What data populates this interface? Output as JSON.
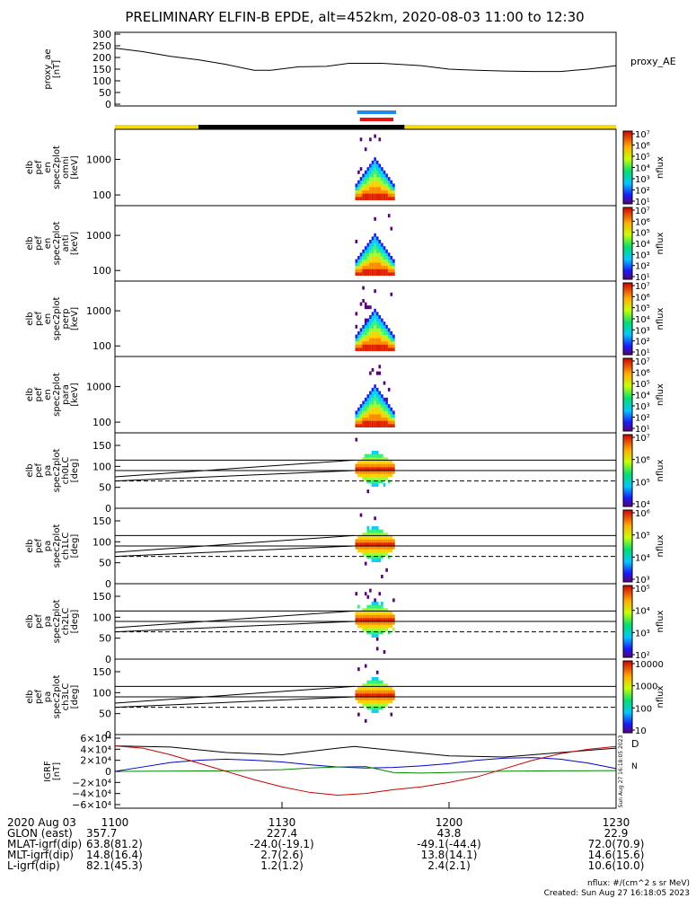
{
  "title": "PRELIMINARY ELFIN-B EPDE, alt=452km, 2020-08-03 11:00 to 12:30",
  "chart_data": [
    {
      "type": "line",
      "id": "proxy_ae",
      "ylabel_lines": [
        "proxy_ae",
        "[nT]"
      ],
      "right_label": "proxy_AE",
      "ylim": [
        0,
        300
      ],
      "yticks": [
        "300",
        "250",
        "200",
        "150",
        "100",
        "50",
        "0"
      ],
      "x": [
        0,
        5,
        10,
        15,
        20,
        25,
        28,
        33,
        38,
        42,
        48,
        55,
        60,
        65,
        70,
        75,
        80,
        85,
        90
      ],
      "y": [
        240,
        225,
        205,
        190,
        170,
        145,
        145,
        160,
        162,
        175,
        175,
        165,
        150,
        145,
        142,
        140,
        140,
        150,
        165
      ]
    },
    {
      "type": "heatmap",
      "id": "en_omni",
      "ylabel_lines": [
        "elb",
        "pef",
        "en",
        "spec2plot",
        "omni",
        "[keV]"
      ],
      "yscale": "log",
      "ylim": [
        50,
        7000
      ],
      "yticks": [
        "1000",
        "100"
      ],
      "colorbar_label": "nflux",
      "colorbar_ticks": [
        "10⁷",
        "10⁶",
        "10⁵",
        "10⁴",
        "10³",
        "10²",
        "10¹"
      ]
    },
    {
      "type": "heatmap",
      "id": "en_anti",
      "ylabel_lines": [
        "elb",
        "pef",
        "en",
        "spec2plot",
        "anti",
        "[keV]"
      ],
      "yscale": "log",
      "ylim": [
        50,
        7000
      ],
      "yticks": [
        "1000",
        "100"
      ],
      "colorbar_label": "nflux",
      "colorbar_ticks": [
        "10⁷",
        "10⁶",
        "10⁵",
        "10⁴",
        "10³",
        "10²",
        "10¹"
      ]
    },
    {
      "type": "heatmap",
      "id": "en_perp",
      "ylabel_lines": [
        "elb",
        "pef",
        "en",
        "spec2plot",
        "perp",
        "[keV]"
      ],
      "yscale": "log",
      "ylim": [
        50,
        7000
      ],
      "yticks": [
        "1000",
        "100"
      ],
      "colorbar_label": "nflux",
      "colorbar_ticks": [
        "10⁷",
        "10⁶",
        "10⁵",
        "10⁴",
        "10³",
        "10²",
        "10¹"
      ]
    },
    {
      "type": "heatmap",
      "id": "en_para",
      "ylabel_lines": [
        "elb",
        "pef",
        "en",
        "spec2plot",
        "para",
        "[keV]"
      ],
      "yscale": "log",
      "ylim": [
        50,
        7000
      ],
      "yticks": [
        "1000",
        "100"
      ],
      "colorbar_label": "nflux",
      "colorbar_ticks": [
        "10⁷",
        "10⁶",
        "10⁵",
        "10⁴",
        "10³",
        "10²",
        "10¹"
      ]
    },
    {
      "type": "heatmap",
      "id": "pa_ch0",
      "ylabel_lines": [
        "elb",
        "pef",
        "pa",
        "spec2plot",
        "ch0LC",
        "[deg]"
      ],
      "ylim": [
        0,
        180
      ],
      "yticks": [
        "150",
        "100",
        "50",
        "0"
      ],
      "colorbar_label": "nflux",
      "colorbar_ticks": [
        "10⁷",
        "10⁶",
        "10⁵",
        "10⁴"
      ]
    },
    {
      "type": "heatmap",
      "id": "pa_ch1",
      "ylabel_lines": [
        "elb",
        "pef",
        "pa",
        "spec2plot",
        "ch1LC",
        "[deg]"
      ],
      "ylim": [
        0,
        180
      ],
      "yticks": [
        "150",
        "100",
        "50",
        "0"
      ],
      "colorbar_label": "nflux",
      "colorbar_ticks": [
        "10⁶",
        "10⁵",
        "10⁴",
        "10³"
      ]
    },
    {
      "type": "heatmap",
      "id": "pa_ch2",
      "ylabel_lines": [
        "elb",
        "pef",
        "pa",
        "spec2plot",
        "ch2LC",
        "[deg]"
      ],
      "ylim": [
        0,
        180
      ],
      "yticks": [
        "150",
        "100",
        "50",
        "0"
      ],
      "colorbar_label": "nflux",
      "colorbar_ticks": [
        "10⁵",
        "10⁴",
        "10³",
        "10²"
      ]
    },
    {
      "type": "heatmap",
      "id": "pa_ch3",
      "ylabel_lines": [
        "elb",
        "pef",
        "pa",
        "spec2plot",
        "ch3LC",
        "[deg]"
      ],
      "ylim": [
        0,
        180
      ],
      "yticks": [
        "150",
        "100",
        "50",
        "0"
      ],
      "colorbar_label": "nflux",
      "colorbar_ticks": [
        "10000",
        "1000",
        "100",
        "10"
      ]
    },
    {
      "type": "line",
      "id": "igrf",
      "ylabel_lines": [
        "IGRF",
        "[nT]"
      ],
      "ylim": [
        -60000,
        60000
      ],
      "yticks": [
        "6×10⁴",
        "4×10⁴",
        "2×10⁴",
        "0",
        "−2×10⁴",
        "−4×10⁴",
        "−6×10⁴"
      ],
      "right_labels": [
        "D",
        "N"
      ],
      "side_stamp": "Sun Aug 27 16:18:05 2023",
      "series": [
        {
          "color": "#000000",
          "x": [
            0,
            10,
            20,
            30,
            40,
            43,
            50,
            60,
            70,
            80,
            90
          ],
          "y": [
            46000,
            44000,
            34000,
            30000,
            42000,
            45000,
            38000,
            28000,
            26000,
            34000,
            42000
          ]
        },
        {
          "color": "#0000cc",
          "x": [
            0,
            5,
            10,
            15,
            20,
            25,
            30,
            35,
            40,
            45,
            50,
            55,
            60,
            65,
            70,
            75,
            80,
            85,
            90
          ],
          "y": [
            0,
            8000,
            16000,
            20000,
            22000,
            20000,
            17000,
            12000,
            8000,
            6000,
            7000,
            10000,
            14000,
            20000,
            24000,
            25000,
            22000,
            15000,
            5000
          ]
        },
        {
          "color": "#008800",
          "x": [
            0,
            20,
            30,
            35,
            40,
            45,
            50,
            55,
            60,
            70,
            80,
            90
          ],
          "y": [
            0,
            1000,
            3000,
            6000,
            8000,
            9000,
            -2000,
            -3000,
            -2000,
            500,
            1000,
            1500
          ]
        },
        {
          "color": "#cc0000",
          "x": [
            0,
            5,
            10,
            15,
            20,
            25,
            30,
            35,
            40,
            45,
            50,
            55,
            60,
            65,
            70,
            75,
            80,
            85,
            90
          ],
          "y": [
            46000,
            42000,
            30000,
            15000,
            0,
            -15000,
            -28000,
            -38000,
            -43000,
            -40000,
            -33000,
            -28000,
            -20000,
            -10000,
            5000,
            20000,
            32000,
            40000,
            45000
          ]
        }
      ]
    }
  ],
  "status_bars": {
    "colors": [
      "#f5d90a",
      "#000000",
      "#f5d90a"
    ],
    "marker_colors": [
      "#1f8be8",
      "#e81414"
    ]
  },
  "time_axis": {
    "row_label": "2020 Aug 03",
    "tick_labels": [
      "1100",
      "1130",
      "1200",
      "1230"
    ],
    "rows": [
      {
        "label": "GLON (east)",
        "values": [
          "357.7",
          "227.4",
          "43.8",
          "22.9"
        ]
      },
      {
        "label": "MLAT-igrf(dip)",
        "values": [
          "63.8(81.2)",
          "-24.0(-19.1)",
          "-49.1(-44.4)",
          "72.0(70.9)"
        ]
      },
      {
        "label": "MLT-igrf(dip)",
        "values": [
          "14.8(16.4)",
          "2.7(2.6)",
          "13.8(14.1)",
          "14.6(15.6)"
        ]
      },
      {
        "label": "L-igrf(dip)",
        "values": [
          "82.1(45.3)",
          "1.2(1.2)",
          "2.4(2.1)",
          "10.6(10.0)"
        ]
      }
    ]
  },
  "footer": {
    "units": "nflux: #/(cm^2 s sr MeV)",
    "created": "Created: Sun Aug 27 16:18:05 2023"
  }
}
